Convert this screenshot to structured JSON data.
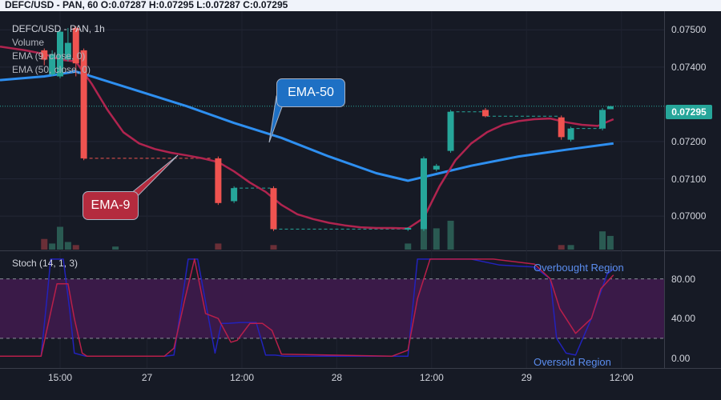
{
  "header": {
    "ohlc_line": "DEFC/USD - PAN, 60  O:0.07287  H:0.07295  L:0.07287  C:0.07295"
  },
  "main_pane": {
    "symbol_title": "DEFC/USD - PAN, 1h",
    "indicators": [
      "Volume",
      "EMA (9, close, 0)",
      "EMA (50, close, 0)"
    ],
    "callouts": {
      "ema50": "EMA-50",
      "ema9": "EMA-9"
    },
    "current_price_label": "0.07295"
  },
  "stoch_pane": {
    "title": "Stoch (14, 1, 3)",
    "overbought_label": "Overbought Region",
    "oversold_label": "Oversold Region"
  },
  "colors": {
    "up": "#26a69a",
    "down": "#ef5350",
    "ema50": "#2e8ff0",
    "ema9": "#b0244f",
    "stoch_k": "#2222bb",
    "stoch_d": "#b81f4a",
    "stoch_band": "#3a1a48",
    "ema50_callout_bg": "#1e70c4",
    "ema9_callout_bg": "#b42b3e"
  },
  "chart_data": [
    {
      "type": "candlestick",
      "title": "DEFC/USD - PAN, 1h",
      "yticks": [
        0.07,
        0.071,
        0.072,
        0.074,
        0.075
      ],
      "yticklabels": [
        "0.07000",
        "0.07100",
        "0.07200",
        "0.07400",
        "0.07500"
      ],
      "ylim": [
        0.0691,
        0.0755
      ],
      "xticklabels": [
        "15:00",
        "27",
        "12:00",
        "28",
        "12:00",
        "29",
        "12:00"
      ],
      "x_positions": [
        0.5,
        3.25,
        6.25,
        9.25,
        12.25,
        15.25,
        18.25
      ],
      "xlim": [
        -1.4,
        19.6
      ],
      "candles": [
        {
          "x": 0,
          "o": 0.07445,
          "h": 0.0745,
          "l": 0.07405,
          "c": 0.0742
        },
        {
          "x": 0.25,
          "o": 0.0738,
          "h": 0.07445,
          "l": 0.07375,
          "c": 0.07435
        },
        {
          "x": 0.5,
          "o": 0.07375,
          "h": 0.075,
          "l": 0.0737,
          "c": 0.07495
        },
        {
          "x": 0.75,
          "o": 0.0742,
          "h": 0.07505,
          "l": 0.07415,
          "c": 0.07465
        },
        {
          "x": 1.0,
          "o": 0.07505,
          "h": 0.0751,
          "l": 0.07375,
          "c": 0.0741
        },
        {
          "x": 1.25,
          "o": 0.07445,
          "h": 0.0745,
          "l": 0.0715,
          "c": 0.07155
        },
        {
          "x": 5.5,
          "o": 0.07155,
          "h": 0.0716,
          "l": 0.0703,
          "c": 0.07035
        },
        {
          "x": 6.0,
          "o": 0.0704,
          "h": 0.0708,
          "l": 0.07035,
          "c": 0.07075
        },
        {
          "x": 7.25,
          "o": 0.07075,
          "h": 0.0708,
          "l": 0.0696,
          "c": 0.06965
        },
        {
          "x": 11.5,
          "o": 0.06965,
          "h": 0.0697,
          "l": 0.0696,
          "c": 0.06968
        },
        {
          "x": 12.0,
          "o": 0.06965,
          "h": 0.0716,
          "l": 0.0696,
          "c": 0.07155
        },
        {
          "x": 12.4,
          "o": 0.07125,
          "h": 0.0714,
          "l": 0.0712,
          "c": 0.07135
        },
        {
          "x": 12.85,
          "o": 0.07175,
          "h": 0.07285,
          "l": 0.0717,
          "c": 0.0728
        },
        {
          "x": 13.95,
          "o": 0.07285,
          "h": 0.0729,
          "l": 0.07265,
          "c": 0.07268
        },
        {
          "x": 16.35,
          "o": 0.07265,
          "h": 0.0727,
          "l": 0.07205,
          "c": 0.07212
        },
        {
          "x": 16.65,
          "o": 0.07205,
          "h": 0.0724,
          "l": 0.072,
          "c": 0.07235
        },
        {
          "x": 17.65,
          "o": 0.07235,
          "h": 0.0729,
          "l": 0.0723,
          "c": 0.07285
        },
        {
          "x": 17.9,
          "o": 0.07287,
          "h": 0.07295,
          "l": 0.07287,
          "c": 0.07295
        }
      ],
      "volume": [
        {
          "x": 0.0,
          "v": 0.35,
          "up": false
        },
        {
          "x": 0.25,
          "v": 0.2,
          "up": true
        },
        {
          "x": 0.5,
          "v": 0.75,
          "up": true
        },
        {
          "x": 0.75,
          "v": 0.25,
          "up": true
        },
        {
          "x": 1.0,
          "v": 0.15,
          "up": false
        },
        {
          "x": 2.25,
          "v": 0.1,
          "up": true
        },
        {
          "x": 5.5,
          "v": 0.2,
          "up": false
        },
        {
          "x": 7.25,
          "v": 0.15,
          "up": false
        },
        {
          "x": 11.5,
          "v": 0.2,
          "up": true
        },
        {
          "x": 12.0,
          "v": 0.85,
          "up": true
        },
        {
          "x": 12.4,
          "v": 0.7,
          "up": true
        },
        {
          "x": 12.85,
          "v": 0.95,
          "up": true
        },
        {
          "x": 16.35,
          "v": 0.15,
          "up": false
        },
        {
          "x": 16.65,
          "v": 0.15,
          "up": true
        },
        {
          "x": 17.65,
          "v": 0.6,
          "up": true
        },
        {
          "x": 17.9,
          "v": 0.45,
          "up": true
        }
      ],
      "ema9": {
        "x": [
          -1.4,
          -0.6,
          0.0,
          0.5,
          1.0,
          1.5,
          2.0,
          2.5,
          3.0,
          3.5,
          4.0,
          4.5,
          5.0,
          5.5,
          6.0,
          6.5,
          7.0,
          7.5,
          8.0,
          8.5,
          9.0,
          9.5,
          10.0,
          10.5,
          11.0,
          11.5,
          12.0,
          12.5,
          13.0,
          13.5,
          14.0,
          14.5,
          15.0,
          15.5,
          16.0,
          16.5,
          17.0,
          17.5,
          18.0
        ],
        "y": [
          0.07455,
          0.07445,
          0.07435,
          0.0742,
          0.07415,
          0.07355,
          0.07285,
          0.07225,
          0.07195,
          0.0718,
          0.0717,
          0.07163,
          0.07155,
          0.07145,
          0.0712,
          0.0709,
          0.07065,
          0.0703,
          0.07005,
          0.06992,
          0.06982,
          0.06975,
          0.0697,
          0.06968,
          0.06968,
          0.06967,
          0.06995,
          0.0708,
          0.0715,
          0.07195,
          0.07225,
          0.07245,
          0.07255,
          0.0726,
          0.07262,
          0.07252,
          0.07245,
          0.07242,
          0.0726
        ]
      },
      "ema50": {
        "x": [
          -1.4,
          0.0,
          1.0,
          1.5,
          3.0,
          4.5,
          6.0,
          7.5,
          9.0,
          10.5,
          11.5,
          12.5,
          13.5,
          15.0,
          16.5,
          18.0
        ],
        "y": [
          0.07365,
          0.07375,
          0.07388,
          0.07375,
          0.07335,
          0.07295,
          0.0725,
          0.0721,
          0.0716,
          0.07115,
          0.07095,
          0.07115,
          0.07135,
          0.0716,
          0.07178,
          0.07195
        ]
      },
      "guide_lines": [
        {
          "x1": 1.25,
          "x2": 5.3,
          "y": 0.07155,
          "color": "#ef5350"
        },
        {
          "x1": 6.0,
          "x2": 7.15,
          "y": 0.07075,
          "color": "#26a69a"
        },
        {
          "x1": 7.25,
          "x2": 11.4,
          "y": 0.06965,
          "color": "#26a69a"
        },
        {
          "x1": 12.85,
          "x2": 13.9,
          "y": 0.0728,
          "color": "#26a69a"
        },
        {
          "x1": 14.0,
          "x2": 16.3,
          "y": 0.07268,
          "color": "#26a69a"
        },
        {
          "x1": 16.65,
          "x2": 17.6,
          "y": 0.07235,
          "color": "#26a69a"
        }
      ],
      "current_price": 0.07295
    },
    {
      "type": "line",
      "title": "Stoch (14, 1, 3)",
      "yticklabels": [
        "80.00",
        "40.00",
        "0.00"
      ],
      "yticks": [
        80,
        40,
        0
      ],
      "ylim": [
        -10,
        108
      ],
      "band": [
        20,
        80
      ],
      "series": [
        {
          "x": [
            -1.4,
            -0.1,
            0.1,
            0.2,
            0.3,
            0.6,
            0.8,
            0.95,
            1.3,
            3.8,
            4.1,
            4.55,
            4.85,
            5.4,
            5.6,
            5.8,
            6.2,
            6.7,
            7.0,
            7.3,
            7.6,
            7.8,
            11.2,
            11.5,
            11.8,
            12.0,
            13.5,
            14.4,
            15.5,
            16.0,
            16.2,
            16.5,
            16.8,
            17.3,
            17.8,
            18.0
          ],
          "y": [
            2,
            2,
            65,
            100,
            100,
            100,
            50,
            5,
            2,
            2,
            3,
            100,
            100,
            5,
            35,
            35,
            36,
            36,
            3,
            3,
            2,
            2,
            2,
            2,
            100,
            100,
            100,
            94,
            92,
            80,
            20,
            5,
            3,
            40,
            85,
            90
          ]
        },
        {
          "x": [
            -1.4,
            -0.1,
            0.4,
            0.75,
            0.95,
            1.2,
            1.35,
            3.8,
            4.1,
            4.45,
            4.75,
            5.1,
            5.5,
            5.9,
            6.1,
            6.5,
            6.9,
            7.2,
            7.5,
            11.0,
            11.5,
            11.8,
            12.2,
            13.5,
            14.2,
            15.5,
            16.0,
            16.3,
            16.8,
            17.3,
            17.6,
            18.0
          ],
          "y": [
            2,
            2,
            75,
            75,
            40,
            5,
            2,
            2,
            10,
            60,
            100,
            45,
            40,
            16,
            18,
            35,
            35,
            28,
            4,
            2,
            8,
            60,
            100,
            100,
            100,
            95,
            80,
            50,
            25,
            40,
            70,
            84
          ]
        }
      ]
    }
  ]
}
